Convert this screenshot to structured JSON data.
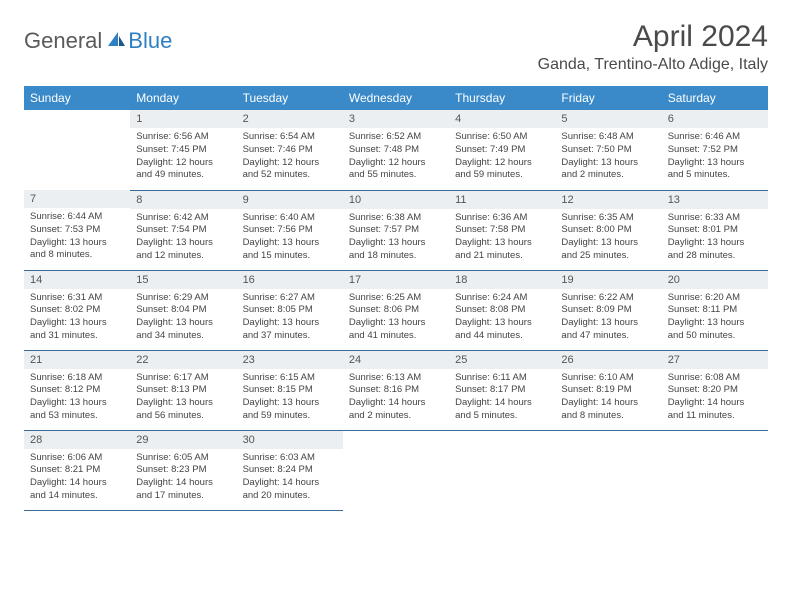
{
  "brand": {
    "text1": "General",
    "text2": "Blue"
  },
  "title": "April 2024",
  "location": "Ganda, Trentino-Alto Adige, Italy",
  "colors": {
    "header_bg": "#3a8ac9",
    "header_fg": "#ffffff",
    "daynum_bg": "#eceff1",
    "border": "#3a6a9a",
    "logo_gray": "#5a5a5a",
    "logo_blue": "#2f7fc2"
  },
  "weekdays": [
    "Sunday",
    "Monday",
    "Tuesday",
    "Wednesday",
    "Thursday",
    "Friday",
    "Saturday"
  ],
  "weeks": [
    [
      null,
      {
        "n": "1",
        "sr": "Sunrise: 6:56 AM",
        "ss": "Sunset: 7:45 PM",
        "dl": "Daylight: 12 hours and 49 minutes."
      },
      {
        "n": "2",
        "sr": "Sunrise: 6:54 AM",
        "ss": "Sunset: 7:46 PM",
        "dl": "Daylight: 12 hours and 52 minutes."
      },
      {
        "n": "3",
        "sr": "Sunrise: 6:52 AM",
        "ss": "Sunset: 7:48 PM",
        "dl": "Daylight: 12 hours and 55 minutes."
      },
      {
        "n": "4",
        "sr": "Sunrise: 6:50 AM",
        "ss": "Sunset: 7:49 PM",
        "dl": "Daylight: 12 hours and 59 minutes."
      },
      {
        "n": "5",
        "sr": "Sunrise: 6:48 AM",
        "ss": "Sunset: 7:50 PM",
        "dl": "Daylight: 13 hours and 2 minutes."
      },
      {
        "n": "6",
        "sr": "Sunrise: 6:46 AM",
        "ss": "Sunset: 7:52 PM",
        "dl": "Daylight: 13 hours and 5 minutes."
      }
    ],
    [
      {
        "n": "7",
        "sr": "Sunrise: 6:44 AM",
        "ss": "Sunset: 7:53 PM",
        "dl": "Daylight: 13 hours and 8 minutes."
      },
      {
        "n": "8",
        "sr": "Sunrise: 6:42 AM",
        "ss": "Sunset: 7:54 PM",
        "dl": "Daylight: 13 hours and 12 minutes."
      },
      {
        "n": "9",
        "sr": "Sunrise: 6:40 AM",
        "ss": "Sunset: 7:56 PM",
        "dl": "Daylight: 13 hours and 15 minutes."
      },
      {
        "n": "10",
        "sr": "Sunrise: 6:38 AM",
        "ss": "Sunset: 7:57 PM",
        "dl": "Daylight: 13 hours and 18 minutes."
      },
      {
        "n": "11",
        "sr": "Sunrise: 6:36 AM",
        "ss": "Sunset: 7:58 PM",
        "dl": "Daylight: 13 hours and 21 minutes."
      },
      {
        "n": "12",
        "sr": "Sunrise: 6:35 AM",
        "ss": "Sunset: 8:00 PM",
        "dl": "Daylight: 13 hours and 25 minutes."
      },
      {
        "n": "13",
        "sr": "Sunrise: 6:33 AM",
        "ss": "Sunset: 8:01 PM",
        "dl": "Daylight: 13 hours and 28 minutes."
      }
    ],
    [
      {
        "n": "14",
        "sr": "Sunrise: 6:31 AM",
        "ss": "Sunset: 8:02 PM",
        "dl": "Daylight: 13 hours and 31 minutes."
      },
      {
        "n": "15",
        "sr": "Sunrise: 6:29 AM",
        "ss": "Sunset: 8:04 PM",
        "dl": "Daylight: 13 hours and 34 minutes."
      },
      {
        "n": "16",
        "sr": "Sunrise: 6:27 AM",
        "ss": "Sunset: 8:05 PM",
        "dl": "Daylight: 13 hours and 37 minutes."
      },
      {
        "n": "17",
        "sr": "Sunrise: 6:25 AM",
        "ss": "Sunset: 8:06 PM",
        "dl": "Daylight: 13 hours and 41 minutes."
      },
      {
        "n": "18",
        "sr": "Sunrise: 6:24 AM",
        "ss": "Sunset: 8:08 PM",
        "dl": "Daylight: 13 hours and 44 minutes."
      },
      {
        "n": "19",
        "sr": "Sunrise: 6:22 AM",
        "ss": "Sunset: 8:09 PM",
        "dl": "Daylight: 13 hours and 47 minutes."
      },
      {
        "n": "20",
        "sr": "Sunrise: 6:20 AM",
        "ss": "Sunset: 8:11 PM",
        "dl": "Daylight: 13 hours and 50 minutes."
      }
    ],
    [
      {
        "n": "21",
        "sr": "Sunrise: 6:18 AM",
        "ss": "Sunset: 8:12 PM",
        "dl": "Daylight: 13 hours and 53 minutes."
      },
      {
        "n": "22",
        "sr": "Sunrise: 6:17 AM",
        "ss": "Sunset: 8:13 PM",
        "dl": "Daylight: 13 hours and 56 minutes."
      },
      {
        "n": "23",
        "sr": "Sunrise: 6:15 AM",
        "ss": "Sunset: 8:15 PM",
        "dl": "Daylight: 13 hours and 59 minutes."
      },
      {
        "n": "24",
        "sr": "Sunrise: 6:13 AM",
        "ss": "Sunset: 8:16 PM",
        "dl": "Daylight: 14 hours and 2 minutes."
      },
      {
        "n": "25",
        "sr": "Sunrise: 6:11 AM",
        "ss": "Sunset: 8:17 PM",
        "dl": "Daylight: 14 hours and 5 minutes."
      },
      {
        "n": "26",
        "sr": "Sunrise: 6:10 AM",
        "ss": "Sunset: 8:19 PM",
        "dl": "Daylight: 14 hours and 8 minutes."
      },
      {
        "n": "27",
        "sr": "Sunrise: 6:08 AM",
        "ss": "Sunset: 8:20 PM",
        "dl": "Daylight: 14 hours and 11 minutes."
      }
    ],
    [
      {
        "n": "28",
        "sr": "Sunrise: 6:06 AM",
        "ss": "Sunset: 8:21 PM",
        "dl": "Daylight: 14 hours and 14 minutes."
      },
      {
        "n": "29",
        "sr": "Sunrise: 6:05 AM",
        "ss": "Sunset: 8:23 PM",
        "dl": "Daylight: 14 hours and 17 minutes."
      },
      {
        "n": "30",
        "sr": "Sunrise: 6:03 AM",
        "ss": "Sunset: 8:24 PM",
        "dl": "Daylight: 14 hours and 20 minutes."
      },
      null,
      null,
      null,
      null
    ]
  ]
}
